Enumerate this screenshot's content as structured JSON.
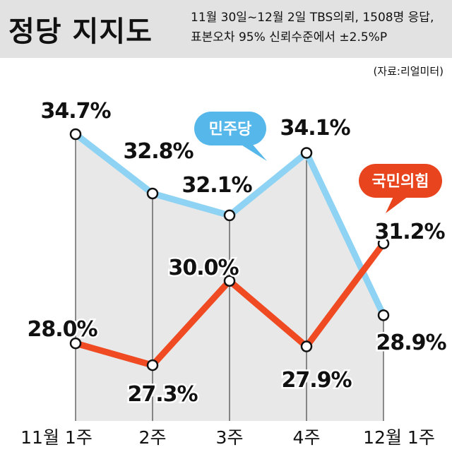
{
  "header": {
    "title": "정당 지지도",
    "subtitle_line1": "11월 30일~12월 2일 TBS의뢰, 1508명 응답,",
    "subtitle_line2": "표본오차 95% 신뢰수준에서 ±2.5%P",
    "source": "(자료:리얼미터)"
  },
  "chart_data": {
    "type": "line",
    "categories": [
      "11월 1주",
      "2주",
      "3주",
      "4주",
      "12월 1주"
    ],
    "series": [
      {
        "name": "민주당",
        "values": [
          34.7,
          32.8,
          32.1,
          34.1,
          28.9
        ],
        "labels": [
          "34.7%",
          "32.8%",
          "32.1%",
          "34.1%",
          "28.9%"
        ],
        "color": "#8ed3f3",
        "bubble_color": "#56b7ea"
      },
      {
        "name": "국민의힘",
        "values": [
          28.0,
          27.3,
          30.0,
          27.9,
          31.2
        ],
        "labels": [
          "28.0%",
          "27.3%",
          "30.0%",
          "27.9%",
          "31.2%"
        ],
        "color": "#f04a22",
        "bubble_color": "#e8451f"
      }
    ],
    "fill_color": "#e8e8e8",
    "grid": "vertical"
  }
}
